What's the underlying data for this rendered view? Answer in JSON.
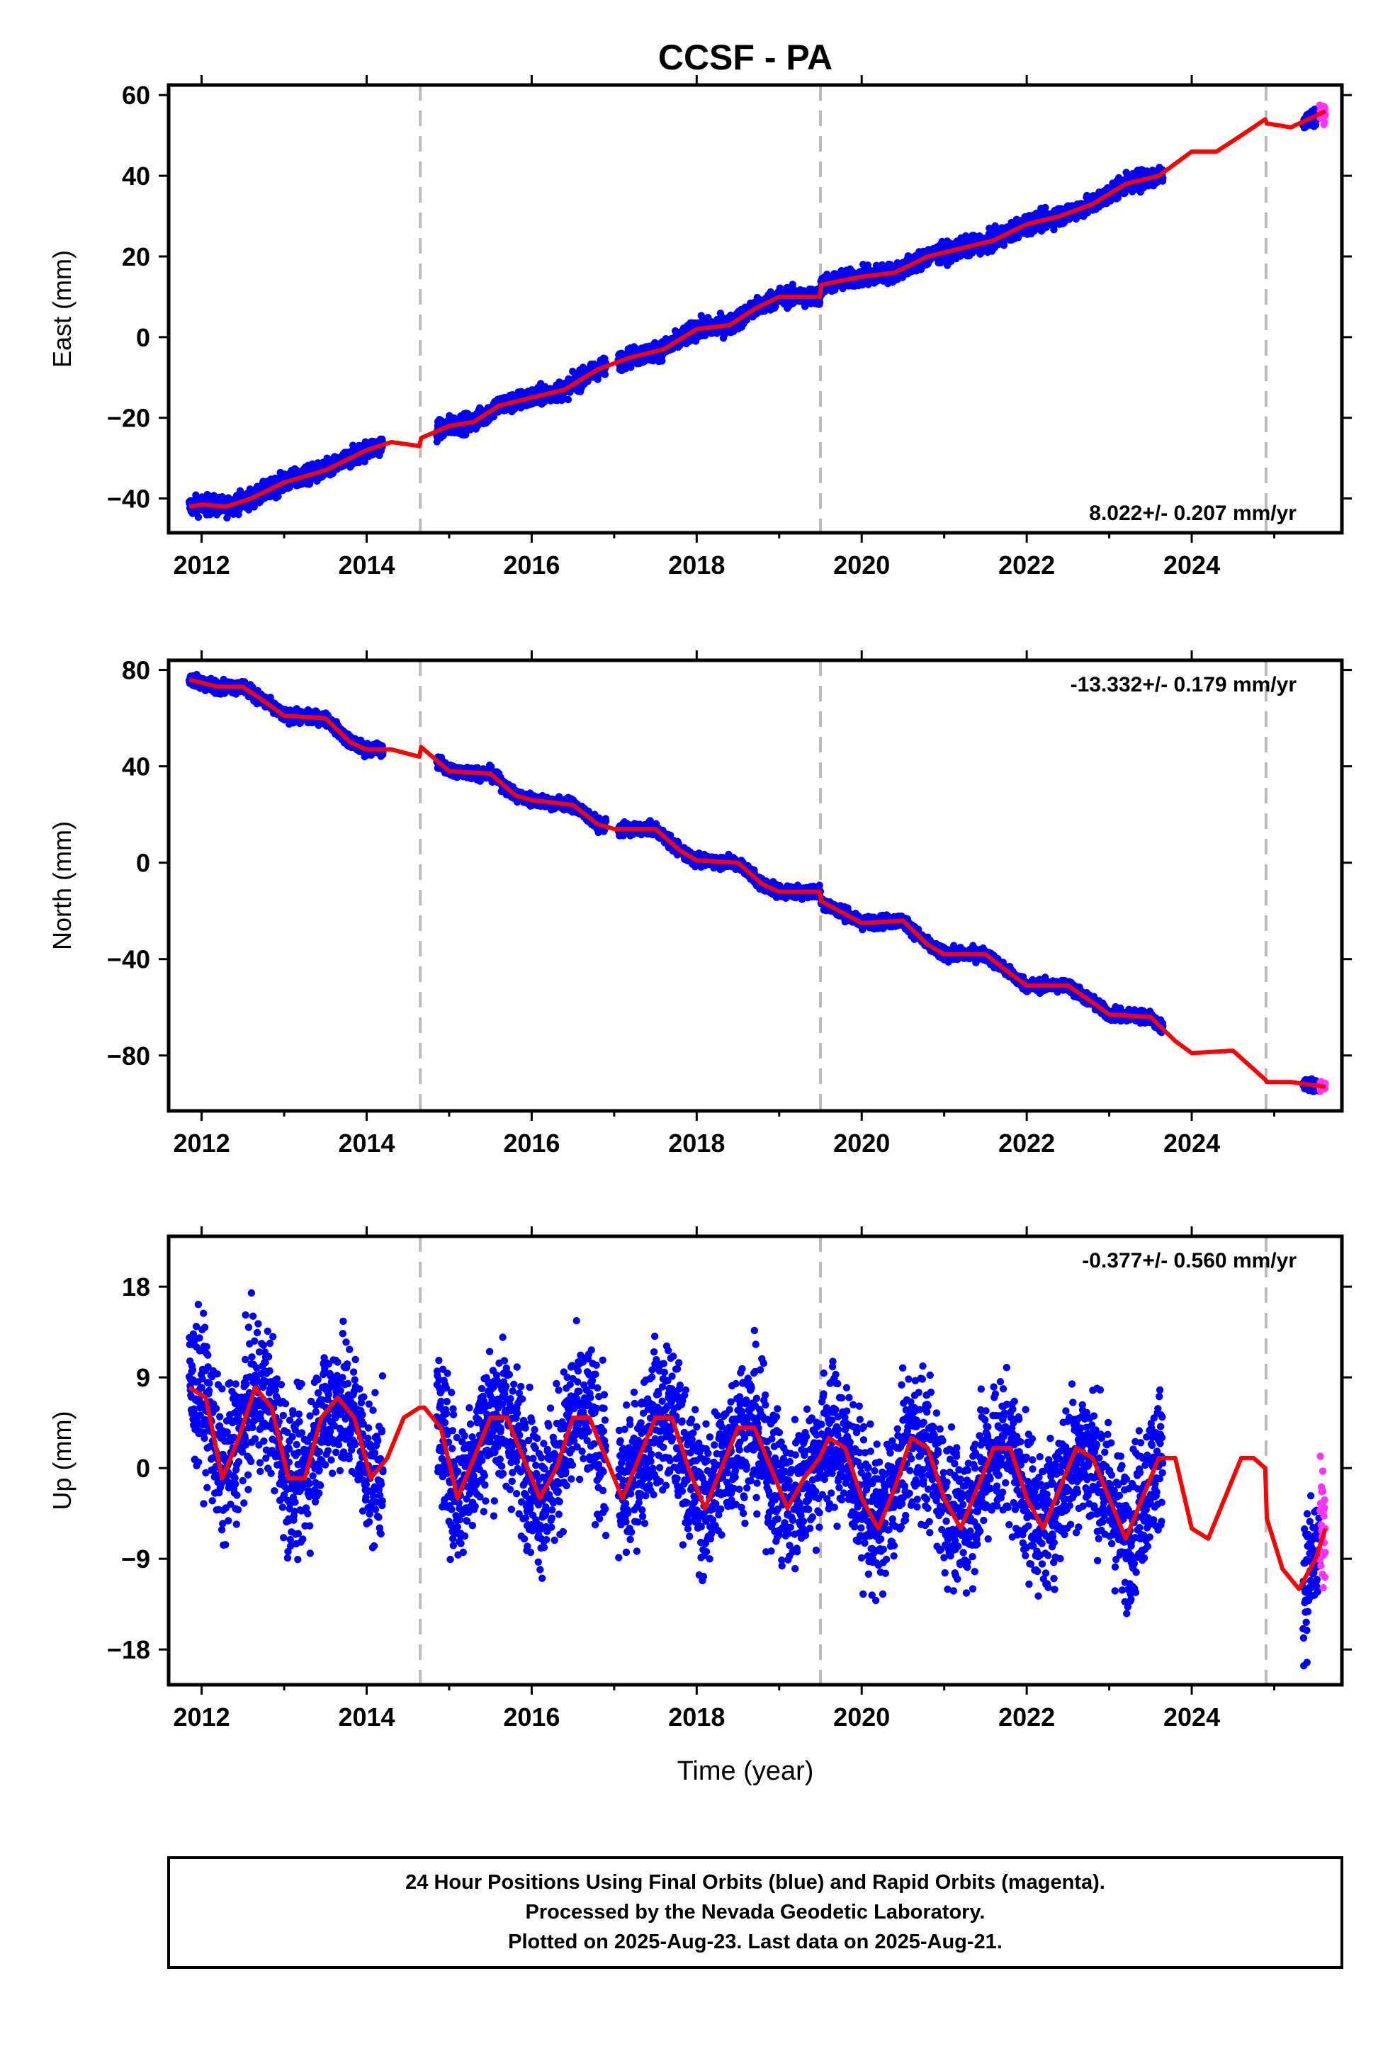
{
  "title": "CCSF - PA",
  "xlabel": "Time (year)",
  "footer": {
    "lines": [
      "24 Hour Positions Using Final Orbits (blue) and Rapid Orbits (magenta).",
      "Processed by the Nevada Geodetic Laboratory.",
      "Plotted on 2025-Aug-23. Last data on 2025-Aug-21."
    ]
  },
  "colors": {
    "final_orbits": "#0000ff",
    "rapid_orbits": "#ff33ff",
    "model": "#ff0000",
    "event_lines": "#bbbbbb",
    "axes": "#000000"
  },
  "chart_data": [
    {
      "type": "scatter",
      "ylabel": "East (mm)",
      "rate": "8.022+/- 0.207 mm/yr",
      "rate_placement": "bottom-right",
      "xlim": [
        2011.6,
        2025.82
      ],
      "ylim": [
        -48.5,
        62.5
      ],
      "xticks": [
        2012,
        2014,
        2016,
        2018,
        2020,
        2022,
        2024
      ],
      "xtick_labels": [
        "2012",
        "2014",
        "2016",
        "2018",
        "2020",
        "2022",
        "2024"
      ],
      "yticks": [
        -40,
        -20,
        0,
        20,
        40,
        60
      ],
      "ytick_labels": [
        "−40",
        "−20",
        "0",
        "20",
        "40",
        "60"
      ],
      "event_lines": [
        2014.65,
        2019.5,
        2024.9
      ],
      "data_segments": [
        [
          2011.85,
          2014.2
        ],
        [
          2014.85,
          2016.9
        ],
        [
          2017.05,
          2023.65
        ],
        [
          2025.35,
          2025.62
        ]
      ],
      "rapid_span": [
        2025.55,
        2025.62
      ],
      "model": {
        "x": [
          2011.85,
          2012.0,
          2012.3,
          2012.6,
          2013.0,
          2013.5,
          2014.0,
          2014.3,
          2014.64,
          2014.66,
          2015.0,
          2015.3,
          2015.6,
          2016.0,
          2016.4,
          2016.8,
          2017.2,
          2017.6,
          2018.0,
          2018.4,
          2018.7,
          2019.0,
          2019.49,
          2019.51,
          2020.0,
          2020.4,
          2020.8,
          2021.2,
          2021.6,
          2022.0,
          2022.4,
          2022.8,
          2023.2,
          2023.6,
          2024.0,
          2024.3,
          2024.6,
          2024.89,
          2024.91,
          2025.2,
          2025.62
        ],
        "y": [
          -42,
          -41.5,
          -42,
          -40,
          -36,
          -33,
          -28,
          -26,
          -27,
          -25,
          -22,
          -21,
          -17,
          -15,
          -13,
          -8,
          -5,
          -3,
          2,
          3,
          7,
          10,
          10,
          13,
          15,
          16,
          20,
          22,
          24,
          28,
          30,
          33,
          38,
          40,
          46,
          46,
          50,
          54,
          53,
          52,
          56
        ]
      },
      "scatter_noise_mm": 1.6
    },
    {
      "type": "scatter",
      "ylabel": "North (mm)",
      "rate": "-13.332+/- 0.179 mm/yr",
      "rate_placement": "top-right",
      "xlim": [
        2011.6,
        2025.82
      ],
      "ylim": [
        -103,
        84
      ],
      "xticks": [
        2012,
        2014,
        2016,
        2018,
        2020,
        2022,
        2024
      ],
      "xtick_labels": [
        "2012",
        "2014",
        "2016",
        "2018",
        "2020",
        "2022",
        "2024"
      ],
      "yticks": [
        -80,
        -40,
        0,
        40,
        80
      ],
      "ytick_labels": [
        "−80",
        "−40",
        "0",
        "40",
        "80"
      ],
      "event_lines": [
        2014.65,
        2019.5,
        2024.9
      ],
      "data_segments": [
        [
          2011.85,
          2014.2
        ],
        [
          2014.85,
          2016.9
        ],
        [
          2017.05,
          2023.65
        ],
        [
          2025.35,
          2025.62
        ]
      ],
      "rapid_span": [
        2025.55,
        2025.62
      ],
      "model": {
        "x": [
          2011.85,
          2012.2,
          2012.5,
          2012.8,
          2013.0,
          2013.5,
          2013.8,
          2014.0,
          2014.3,
          2014.64,
          2014.66,
          2015.0,
          2015.5,
          2015.8,
          2016.0,
          2016.5,
          2016.8,
          2017.0,
          2017.5,
          2017.8,
          2018.0,
          2018.5,
          2018.8,
          2019.0,
          2019.49,
          2019.51,
          2020.0,
          2020.5,
          2020.8,
          2021.0,
          2021.5,
          2021.8,
          2022.0,
          2022.5,
          2022.8,
          2023.0,
          2023.5,
          2023.8,
          2024.0,
          2024.5,
          2024.89,
          2024.91,
          2025.2,
          2025.62
        ],
        "y": [
          76,
          73,
          73,
          66,
          61,
          60,
          50,
          47,
          47,
          44,
          48,
          38,
          37,
          28,
          26,
          24,
          16,
          14,
          14,
          5,
          1,
          0,
          -9,
          -12,
          -12,
          -16,
          -25,
          -24,
          -34,
          -38,
          -38,
          -46,
          -51,
          -51,
          -58,
          -63,
          -64,
          -74,
          -79,
          -78,
          -90,
          -91,
          -91,
          -93
        ]
      },
      "scatter_noise_mm": 1.8
    },
    {
      "type": "scatter",
      "ylabel": "Up (mm)",
      "rate": "-0.377+/- 0.560 mm/yr",
      "rate_placement": "top-right",
      "xlim": [
        2011.6,
        2025.82
      ],
      "ylim": [
        -21.5,
        23
      ],
      "xticks": [
        2012,
        2014,
        2016,
        2018,
        2020,
        2022,
        2024
      ],
      "xtick_labels": [
        "2012",
        "2014",
        "2016",
        "2018",
        "2020",
        "2022",
        "2024"
      ],
      "yticks": [
        -18,
        -9,
        0,
        9,
        18
      ],
      "ytick_labels": [
        "−18",
        "−9",
        "0",
        "9",
        "18"
      ],
      "event_lines": [
        2014.65,
        2019.5,
        2024.9
      ],
      "data_segments": [
        [
          2011.85,
          2014.2
        ],
        [
          2014.85,
          2016.9
        ],
        [
          2017.05,
          2023.65
        ],
        [
          2025.35,
          2025.62
        ]
      ],
      "rapid_span": [
        2025.55,
        2025.62
      ],
      "model": {
        "x": [
          2011.85,
          2012.05,
          2012.25,
          2012.45,
          2012.65,
          2012.85,
          2013.05,
          2013.25,
          2013.45,
          2013.65,
          2013.85,
          2014.05,
          2014.25,
          2014.45,
          2014.64,
          2014.7,
          2014.9,
          2015.1,
          2015.3,
          2015.5,
          2015.7,
          2015.9,
          2016.1,
          2016.3,
          2016.5,
          2016.7,
          2016.9,
          2017.1,
          2017.3,
          2017.5,
          2017.7,
          2017.9,
          2018.1,
          2018.3,
          2018.5,
          2018.7,
          2018.9,
          2019.1,
          2019.3,
          2019.49,
          2019.6,
          2019.8,
          2020.0,
          2020.2,
          2020.4,
          2020.6,
          2020.8,
          2021.0,
          2021.2,
          2021.4,
          2021.6,
          2021.8,
          2022.0,
          2022.2,
          2022.4,
          2022.6,
          2022.8,
          2023.0,
          2023.2,
          2023.4,
          2023.6,
          2023.8,
          2024.0,
          2024.2,
          2024.4,
          2024.6,
          2024.75,
          2024.89,
          2024.91,
          2025.1,
          2025.3,
          2025.5,
          2025.62
        ],
        "y": [
          8,
          7,
          -1,
          3,
          8,
          6,
          -1,
          -1,
          5,
          7,
          5,
          -1,
          1,
          5,
          6,
          6,
          4,
          -3,
          1,
          5,
          5,
          1,
          -3,
          0,
          5,
          5,
          1,
          -3,
          1,
          5,
          5,
          0,
          -4,
          0,
          4,
          4,
          0,
          -4,
          -1,
          1,
          3,
          2,
          -3,
          -6,
          -2,
          3,
          2,
          -3,
          -6,
          -2,
          2,
          2,
          -3,
          -6,
          -2,
          2,
          1,
          -3,
          -7,
          -3,
          1,
          1,
          -6,
          -7,
          -3,
          1,
          1,
          0,
          -5,
          -10,
          -12,
          -9,
          -6
        ]
      },
      "scatter_noise_mm": 5.0
    }
  ]
}
